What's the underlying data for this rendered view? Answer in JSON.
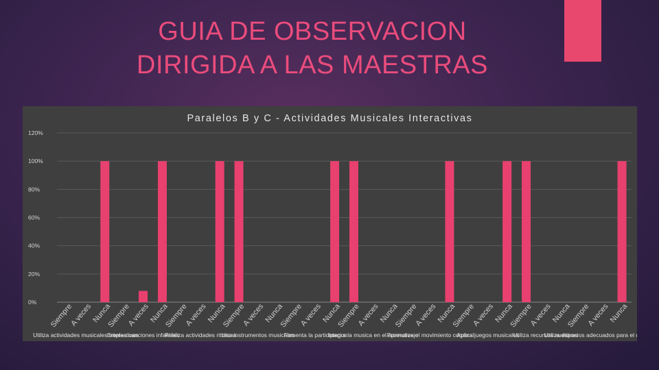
{
  "slide": {
    "title_line1": "GUIA DE OBSERVACION",
    "title_line2": "DIRIGIDA A LAS MAESTRAS",
    "accent_color": "#e8476e",
    "title_color": "#ea4c7c"
  },
  "chart_data": {
    "type": "bar",
    "title": "Paralelos B y C - Actividades Musicales Interactivas",
    "xlabel": "",
    "ylabel": "",
    "ylim": [
      0,
      1.2
    ],
    "yticks": [
      "0%",
      "20%",
      "40%",
      "60%",
      "80%",
      "100%",
      "120%"
    ],
    "grid": true,
    "bar_color": "#e8406f",
    "options": [
      "Siempre",
      "A veces",
      "Nunca"
    ],
    "groups": [
      {
        "label": "Utiliza actividades musicales interactivas",
        "values": [
          0,
          0,
          1
        ]
      },
      {
        "label": "Emplea canciones infantiles",
        "values": [
          0,
          0.08,
          1
        ]
      },
      {
        "label": "Realiza actividades ritmicas",
        "values": [
          0,
          0,
          1
        ]
      },
      {
        "label": "Usa instrumentos musicales",
        "values": [
          1,
          0,
          0
        ]
      },
      {
        "label": "Fomenta la participacion",
        "values": [
          0,
          0,
          1
        ]
      },
      {
        "label": "Integra la musica en el aprendizaje",
        "values": [
          1,
          0,
          0
        ]
      },
      {
        "label": "Promueve el movimiento corporal",
        "values": [
          0,
          0,
          1
        ]
      },
      {
        "label": "Aplica juegos musicales",
        "values": [
          0,
          0,
          1
        ]
      },
      {
        "label": "Utiliza recursos auditivos",
        "values": [
          1,
          0,
          0
        ]
      },
      {
        "label": "Utiliza espacios adecuados para el desarrollo",
        "values": [
          0,
          0,
          1
        ]
      }
    ]
  }
}
